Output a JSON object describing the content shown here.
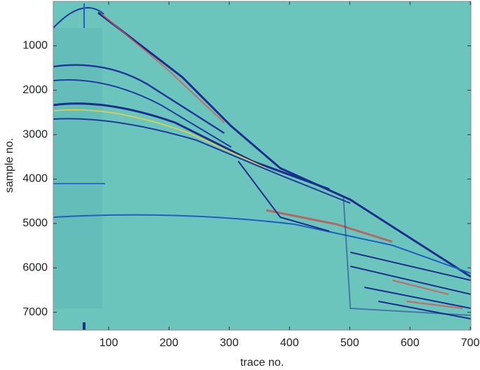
{
  "chart_data": {
    "type": "image",
    "xlabel": "trace no.",
    "ylabel": "sample no.",
    "xlim": [
      8,
      701
    ],
    "ylim": [
      0,
      7400
    ],
    "y_reversed": true,
    "xticks": [
      100,
      200,
      300,
      400,
      500,
      600,
      700
    ],
    "yticks": [
      1000,
      2000,
      3000,
      4000,
      5000,
      6000,
      7000
    ],
    "background": "#6cc5bc"
  }
}
